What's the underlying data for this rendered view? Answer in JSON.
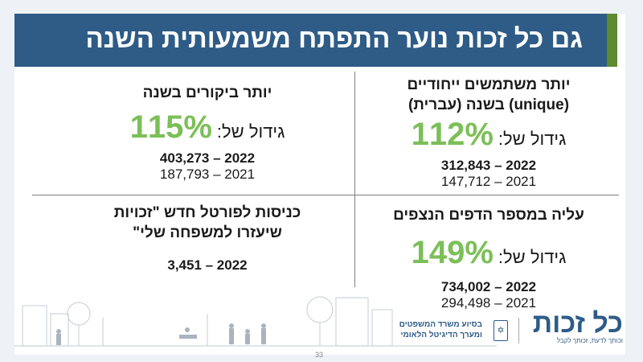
{
  "header": {
    "title": "גם כל זכות נוער התפתח משמעותית השנה"
  },
  "quadrants": [
    {
      "heading_lines": [
        "יותר משתמשים ייחודיים",
        "(unique) בשנה (עברית)"
      ],
      "growth_label": "גידול של:",
      "growth_value": "112%",
      "year_2022": "312,843 – 2022",
      "year_2021": "147,712 – 2021"
    },
    {
      "heading_lines": [
        "יותר ביקורים בשנה"
      ],
      "growth_label": "גידול של:",
      "growth_value": "115%",
      "year_2022": "403,273 – 2022",
      "year_2021": "187,793 – 2021"
    },
    {
      "heading_lines": [
        "עליה במספר הדפים הנצפים"
      ],
      "growth_label": "גידול של:",
      "growth_value": "149%",
      "year_2022": "734,002 – 2022",
      "year_2021": "294,498 – 2021"
    },
    {
      "heading_lines": [
        "כניסות לפורטל חדש \"זכויות",
        "שיעזרו למשפחה שלי\""
      ],
      "year_2022": "3,451 – 2022"
    }
  ],
  "footer": {
    "page_number": "33",
    "logo_text": "כל זכות",
    "logo_tagline": "וכותך לדעת, זכותך לקבל",
    "support_lines": [
      "בסיוע משרד המשפטים",
      "ומערך הדיגיטל הלאומי"
    ],
    "emblem_icon": "menorah-emblem-icon"
  },
  "colors": {
    "header": "#2e5c87",
    "accent_green": "#5e8a30",
    "growth": "#7cbf58"
  }
}
